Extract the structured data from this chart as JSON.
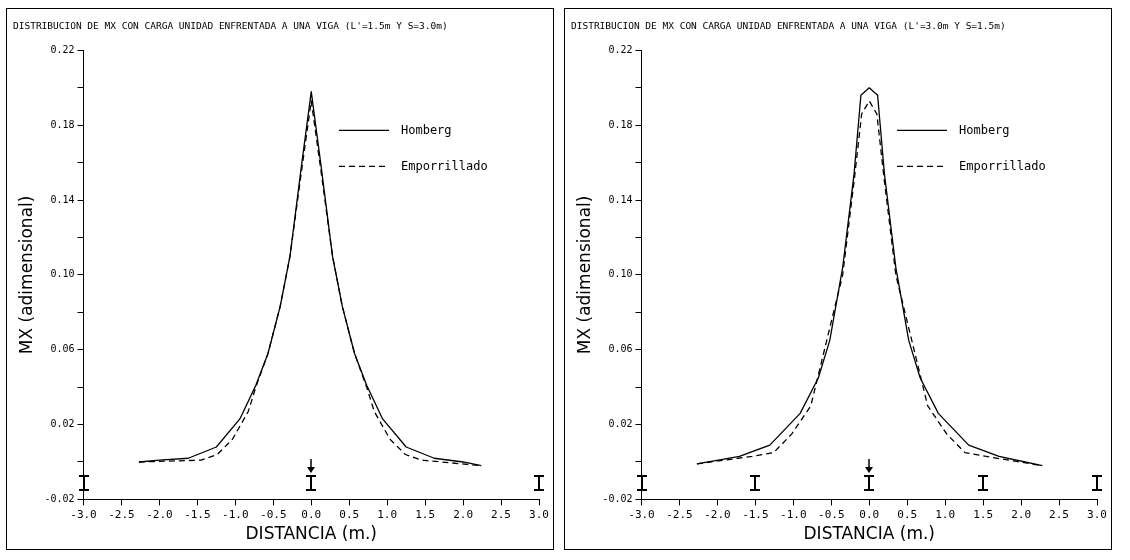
{
  "chart_data": [
    {
      "type": "line",
      "title": "DISTRIBUCION DE MX CON CARGA UNIDAD ENFRENTADA A UNA VIGA (L'=1.5m Y S=3.0m)",
      "xlabel": "DISTANCIA (m.)",
      "ylabel": "MX (adimensional)",
      "series": [
        {
          "name": "Homberg",
          "color": "#000000",
          "line_style": "solid",
          "x": [
            -2.27,
            -2.0,
            -1.62,
            -1.25,
            -0.94,
            -0.73,
            -0.57,
            -0.41,
            -0.28,
            -0.13,
            0,
            0.13,
            0.28,
            0.41,
            0.57,
            0.73,
            0.94,
            1.25,
            1.62,
            2.0,
            2.24
          ],
          "values": [
            0,
            0.001,
            0.002,
            0.008,
            0.023,
            0.041,
            0.058,
            0.083,
            0.11,
            0.158,
            0.198,
            0.158,
            0.11,
            0.083,
            0.058,
            0.041,
            0.023,
            0.008,
            0.002,
            0,
            -0.002
          ]
        },
        {
          "name": "Emporrillado",
          "color": "#000000",
          "line_style": "dashed",
          "x": [
            -2.27,
            -1.45,
            -1.24,
            -1.04,
            -0.83,
            -0.73,
            -0.57,
            -0.41,
            -0.28,
            -0.13,
            0,
            0.13,
            0.28,
            0.41,
            0.57,
            0.73,
            0.83,
            1.04,
            1.24,
            1.45,
            2.24
          ],
          "values": [
            0,
            0.001,
            0.004,
            0.012,
            0.027,
            0.04,
            0.058,
            0.083,
            0.11,
            0.155,
            0.193,
            0.155,
            0.11,
            0.083,
            0.058,
            0.04,
            0.027,
            0.012,
            0.004,
            0.001,
            -0.002
          ]
        }
      ],
      "xlim": [
        -3,
        3
      ],
      "xticks": [
        {
          "value": -3,
          "label": "-3.0"
        },
        {
          "value": -2.5,
          "label": "-2.5"
        },
        {
          "value": -2,
          "label": "-2.0"
        },
        {
          "value": -1.5,
          "label": "-1.5"
        },
        {
          "value": -1,
          "label": "-1.0"
        },
        {
          "value": -0.5,
          "label": "-0.5"
        },
        {
          "value": 0,
          "label": "0.0"
        },
        {
          "value": 0.5,
          "label": "0.5"
        },
        {
          "value": 1,
          "label": "1.0"
        },
        {
          "value": 1.5,
          "label": "1.5"
        },
        {
          "value": 2,
          "label": "2.0"
        },
        {
          "value": 2.5,
          "label": "2.5"
        },
        {
          "value": 3,
          "label": "3.0"
        }
      ],
      "ylim": [
        -0.02,
        0.22
      ],
      "yticks": [
        {
          "value": -0.02,
          "label": "-0.02"
        },
        {
          "value": 0,
          "label": null
        },
        {
          "value": 0.02,
          "label": "0.02"
        },
        {
          "value": 0.04,
          "label": null
        },
        {
          "value": 0.06,
          "label": "0.06"
        },
        {
          "value": 0.08,
          "label": null
        },
        {
          "value": 0.1,
          "label": "0.10"
        },
        {
          "value": 0.12,
          "label": null
        },
        {
          "value": 0.14,
          "label": "0.14"
        },
        {
          "value": 0.16,
          "label": null
        },
        {
          "value": 0.18,
          "label": "0.18"
        },
        {
          "value": 0.2,
          "label": null
        },
        {
          "value": 0.22,
          "label": "0.22"
        }
      ],
      "grid": false,
      "legend": "top right",
      "marker": "none"
    },
    {
      "type": "line",
      "title": "DISTRIBUCION DE MX CON CARGA UNIDAD ENFRENTADA A UNA VIGA (L'=3.0m Y S=1.5m)",
      "xlabel": "DISTANCIA (m.)",
      "ylabel": "MX (adimensional)",
      "series": [
        {
          "name": "Homberg",
          "color": "#000000",
          "line_style": "solid",
          "x": [
            -2.27,
            -1.71,
            -1.31,
            -0.91,
            -0.67,
            -0.52,
            -0.35,
            -0.2,
            -0.11,
            0,
            0.11,
            0.2,
            0.35,
            0.52,
            0.67,
            0.91,
            1.31,
            1.71,
            2.28
          ],
          "values": [
            -0.001,
            0.003,
            0.009,
            0.026,
            0.045,
            0.065,
            0.104,
            0.154,
            0.196,
            0.2,
            0.196,
            0.154,
            0.104,
            0.065,
            0.045,
            0.026,
            0.009,
            0.003,
            -0.002
          ]
        },
        {
          "name": "Emporrillado",
          "color": "#000000",
          "line_style": "dashed",
          "x": [
            -2.27,
            -1.54,
            -1.26,
            -1.02,
            -0.77,
            -0.62,
            -0.35,
            -0.2,
            -0.1,
            0,
            0.1,
            0.2,
            0.35,
            0.62,
            0.77,
            1.02,
            1.26,
            1.54,
            2.28
          ],
          "values": [
            -0.001,
            0.003,
            0.005,
            0.015,
            0.03,
            0.055,
            0.1,
            0.15,
            0.186,
            0.193,
            0.186,
            0.15,
            0.1,
            0.055,
            0.03,
            0.015,
            0.005,
            0.003,
            -0.002
          ]
        }
      ],
      "xlim": [
        -3,
        3
      ],
      "xticks": [
        {
          "value": -3,
          "label": "-3.0"
        },
        {
          "value": -2.5,
          "label": "-2.5"
        },
        {
          "value": -2,
          "label": "-2.0"
        },
        {
          "value": -1.5,
          "label": "-1.5"
        },
        {
          "value": -1,
          "label": "-1.0"
        },
        {
          "value": -0.5,
          "label": "-0.5"
        },
        {
          "value": 0,
          "label": "0.0"
        },
        {
          "value": 0.5,
          "label": "0.5"
        },
        {
          "value": 1,
          "label": "1.0"
        },
        {
          "value": 1.5,
          "label": "1.5"
        },
        {
          "value": 2,
          "label": "2.0"
        },
        {
          "value": 2.5,
          "label": "2.5"
        },
        {
          "value": 3,
          "label": "3.0"
        }
      ],
      "ylim": [
        -0.02,
        0.22
      ],
      "yticks": [
        {
          "value": -0.02,
          "label": "-0.02"
        },
        {
          "value": 0,
          "label": null
        },
        {
          "value": 0.02,
          "label": "0.02"
        },
        {
          "value": 0.04,
          "label": null
        },
        {
          "value": 0.06,
          "label": "0.06"
        },
        {
          "value": 0.08,
          "label": null
        },
        {
          "value": 0.1,
          "label": "0.10"
        },
        {
          "value": 0.12,
          "label": null
        },
        {
          "value": 0.14,
          "label": "0.14"
        },
        {
          "value": 0.16,
          "label": null
        },
        {
          "value": 0.18,
          "label": "0.18"
        },
        {
          "value": 0.2,
          "label": null
        },
        {
          "value": 0.22,
          "label": "0.22"
        }
      ],
      "grid": false,
      "legend": "top right",
      "marker": "none"
    }
  ]
}
